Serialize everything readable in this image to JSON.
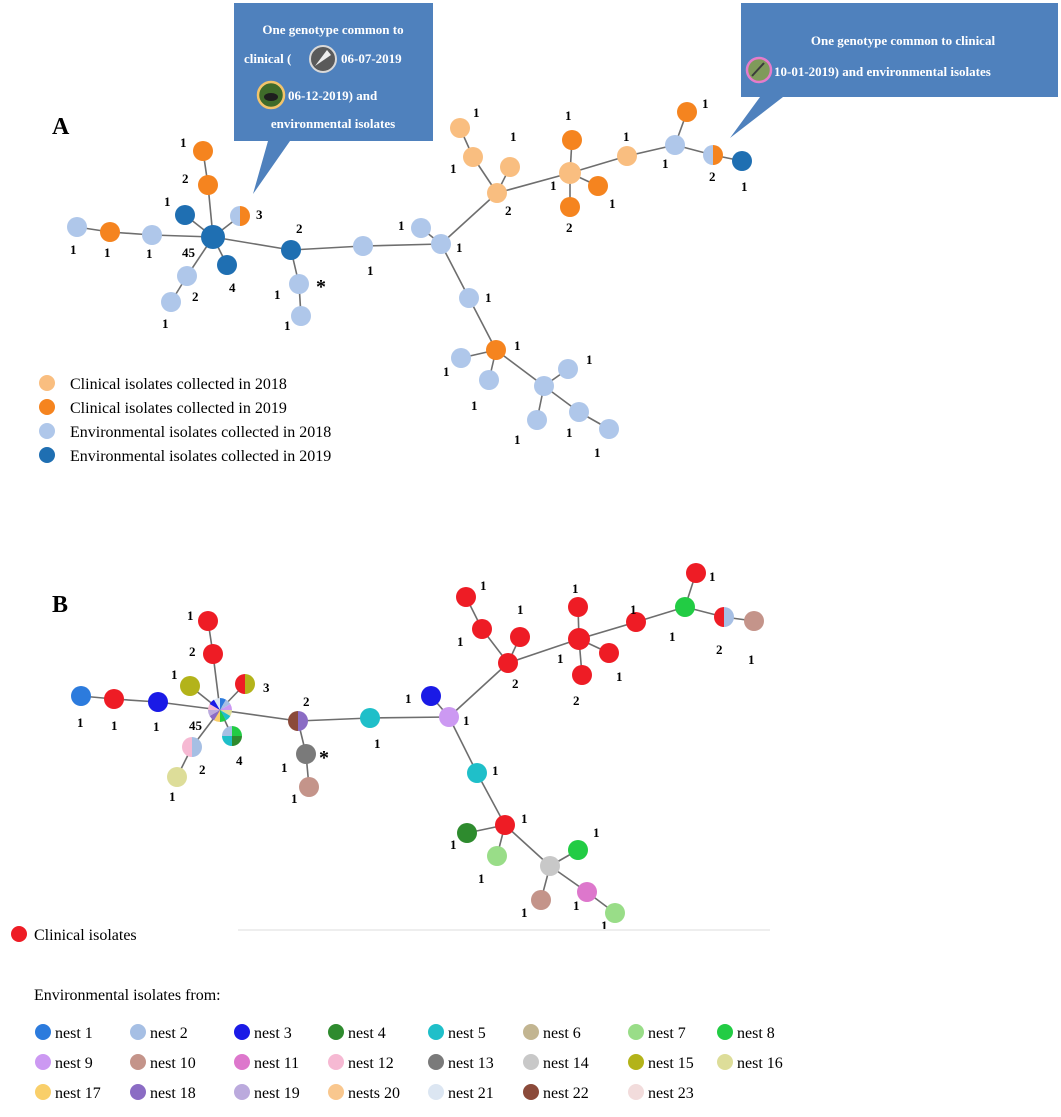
{
  "panel_a": {
    "label": "A",
    "callout_left": {
      "line1": "One genotype common to",
      "line2a": "clinical (",
      "line2b": "06-07-2019",
      "line3": "06-12-2019) and",
      "line4": "environmental isolates"
    },
    "callout_right": {
      "line1": "One genotype common to clinical",
      "line2": "10-01-2019) and environmental isolates"
    },
    "legend": [
      {
        "label": "Clinical isolates collected in 2018",
        "color": "#F9BE80"
      },
      {
        "label": "Clinical isolates collected in 2019",
        "color": "#F5841F"
      },
      {
        "label": "Environmental isolates collected in 2018",
        "color": "#AFC7EA"
      },
      {
        "label": "Environmental isolates collected in 2019",
        "color": "#1F6FB2"
      }
    ]
  },
  "panel_b": {
    "label": "B",
    "clinical_label": "Clinical isolates",
    "clinical_color": "#EE1C25",
    "env_heading": "Environmental isolates from:",
    "nests": [
      {
        "label": "nest 1",
        "color": "#2C7BDD"
      },
      {
        "label": "nest 2",
        "color": "#A6BFE4"
      },
      {
        "label": "nest 3",
        "color": "#1A1AE6"
      },
      {
        "label": "nest 4",
        "color": "#2E8B2E"
      },
      {
        "label": "nest 5",
        "color": "#1FBFC9"
      },
      {
        "label": "nest 6",
        "color": "#C2B591"
      },
      {
        "label": "nest 7",
        "color": "#99DD88"
      },
      {
        "label": "nest 8",
        "color": "#22CC44"
      },
      {
        "label": "nest 9",
        "color": "#CC99F2"
      },
      {
        "label": "nest 10",
        "color": "#C4948A"
      },
      {
        "label": "nest 11",
        "color": "#DD77CC"
      },
      {
        "label": "nest 12",
        "color": "#F6B9D3"
      },
      {
        "label": "nest 13",
        "color": "#7A7A7A"
      },
      {
        "label": "nest 14",
        "color": "#C8C8C8"
      },
      {
        "label": "nest 15",
        "color": "#B3B31A"
      },
      {
        "label": "nest 16",
        "color": "#DDDD99"
      },
      {
        "label": "nest 17",
        "color": "#F9CF6A"
      },
      {
        "label": "nest 18",
        "color": "#8B6CC4"
      },
      {
        "label": "nest 19",
        "color": "#BBAADD"
      },
      {
        "label": "nests 20",
        "color": "#F9C78E"
      },
      {
        "label": "nest 21",
        "color": "#DCE6F2"
      },
      {
        "label": "nest 22",
        "color": "#8B4A3A"
      },
      {
        "label": "nest 23",
        "color": "#F2DCDC"
      }
    ]
  },
  "node_labels": {
    "count_1": "1",
    "count_2": "2",
    "count_3": "3",
    "count_4": "4",
    "count_45": "45",
    "star": "*"
  },
  "icons": {
    "bird_photo": "bird-photo-icon",
    "nest_photo": "nest-photo-icon"
  }
}
